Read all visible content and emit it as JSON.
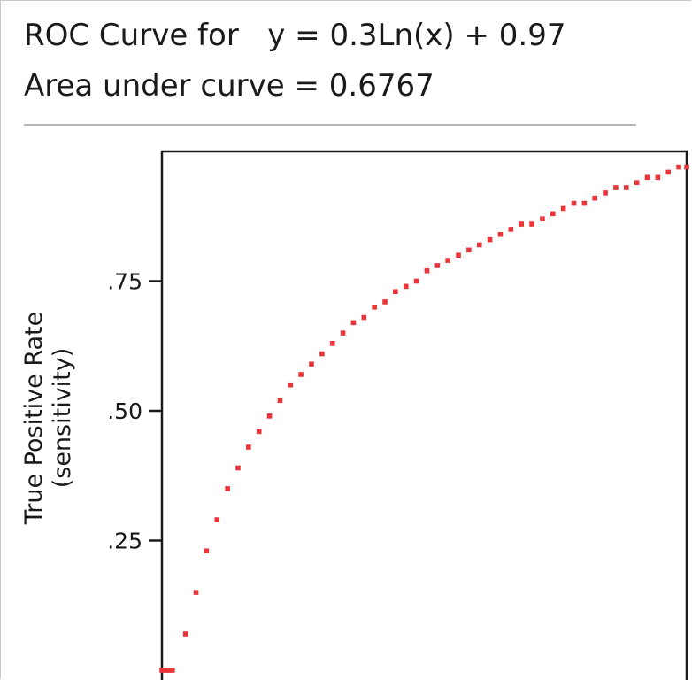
{
  "header": {
    "title": "ROC Curve for   y = 0.3Ln(x) + 0.97",
    "subtitle": "Area under curve = 0.6767"
  },
  "chart_data": {
    "type": "scatter",
    "title": "ROC Curve for   y = 0.3Ln(x) + 0.97",
    "subtitle": "Area under curve = 0.6767",
    "ylabel": "True Positive Rate",
    "ylabel_sub": "(sensitivity)",
    "xlabel": "",
    "equation": {
      "a": 0.3,
      "b": 0.97
    },
    "xlim": [
      0,
      1
    ],
    "ylim": [
      0,
      1
    ],
    "yticks": [
      {
        "value": 0.25,
        "label": ".25"
      },
      {
        "value": 0.5,
        "label": ".50"
      },
      {
        "value": 0.75,
        "label": ".75"
      }
    ],
    "grid": false,
    "point_color": "#e8353a",
    "series": [
      {
        "x": [
          0.0,
          0.005,
          0.01,
          0.015,
          0.02,
          0.045,
          0.065,
          0.085,
          0.105,
          0.125,
          0.145,
          0.165,
          0.185,
          0.205,
          0.225,
          0.245,
          0.265,
          0.285,
          0.305,
          0.325,
          0.345,
          0.365,
          0.385,
          0.405,
          0.425,
          0.445,
          0.465,
          0.485,
          0.505,
          0.525,
          0.545,
          0.565,
          0.585,
          0.605,
          0.625,
          0.645,
          0.665,
          0.685,
          0.705,
          0.725,
          0.745,
          0.765,
          0.785,
          0.805,
          0.825,
          0.845,
          0.865,
          0.885,
          0.905,
          0.925,
          0.945,
          0.965,
          0.985,
          1.0
        ],
        "y": [
          0.0,
          0.0,
          0.0,
          0.0,
          0.0,
          0.07,
          0.15,
          0.23,
          0.29,
          0.35,
          0.39,
          0.43,
          0.46,
          0.49,
          0.52,
          0.55,
          0.57,
          0.59,
          0.61,
          0.63,
          0.65,
          0.67,
          0.68,
          0.7,
          0.71,
          0.73,
          0.74,
          0.75,
          0.77,
          0.78,
          0.79,
          0.8,
          0.81,
          0.82,
          0.83,
          0.84,
          0.85,
          0.86,
          0.86,
          0.87,
          0.88,
          0.89,
          0.9,
          0.9,
          0.91,
          0.92,
          0.93,
          0.93,
          0.94,
          0.95,
          0.95,
          0.96,
          0.97,
          0.97
        ]
      }
    ]
  }
}
